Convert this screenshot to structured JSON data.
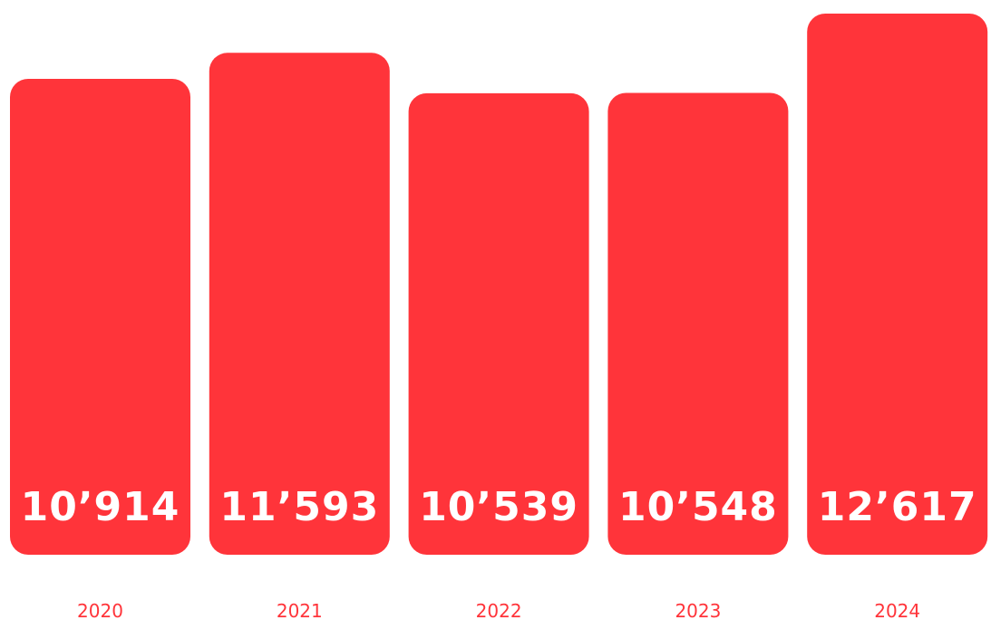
{
  "chart_data": {
    "type": "bar",
    "categories": [
      "2020",
      "2021",
      "2022",
      "2023",
      "2024"
    ],
    "values": [
      10914,
      11593,
      10539,
      10548,
      12617
    ],
    "value_labels": [
      "10’914",
      "11’593",
      "10’539",
      "10’548",
      "12’617"
    ],
    "title": "",
    "xlabel": "",
    "ylabel": "",
    "grid": false,
    "legend": "none"
  },
  "colors": {
    "bar": "#ff343a",
    "tick_label": "#ff343a",
    "value_label": "#ffffff",
    "background": "#ffffff"
  }
}
